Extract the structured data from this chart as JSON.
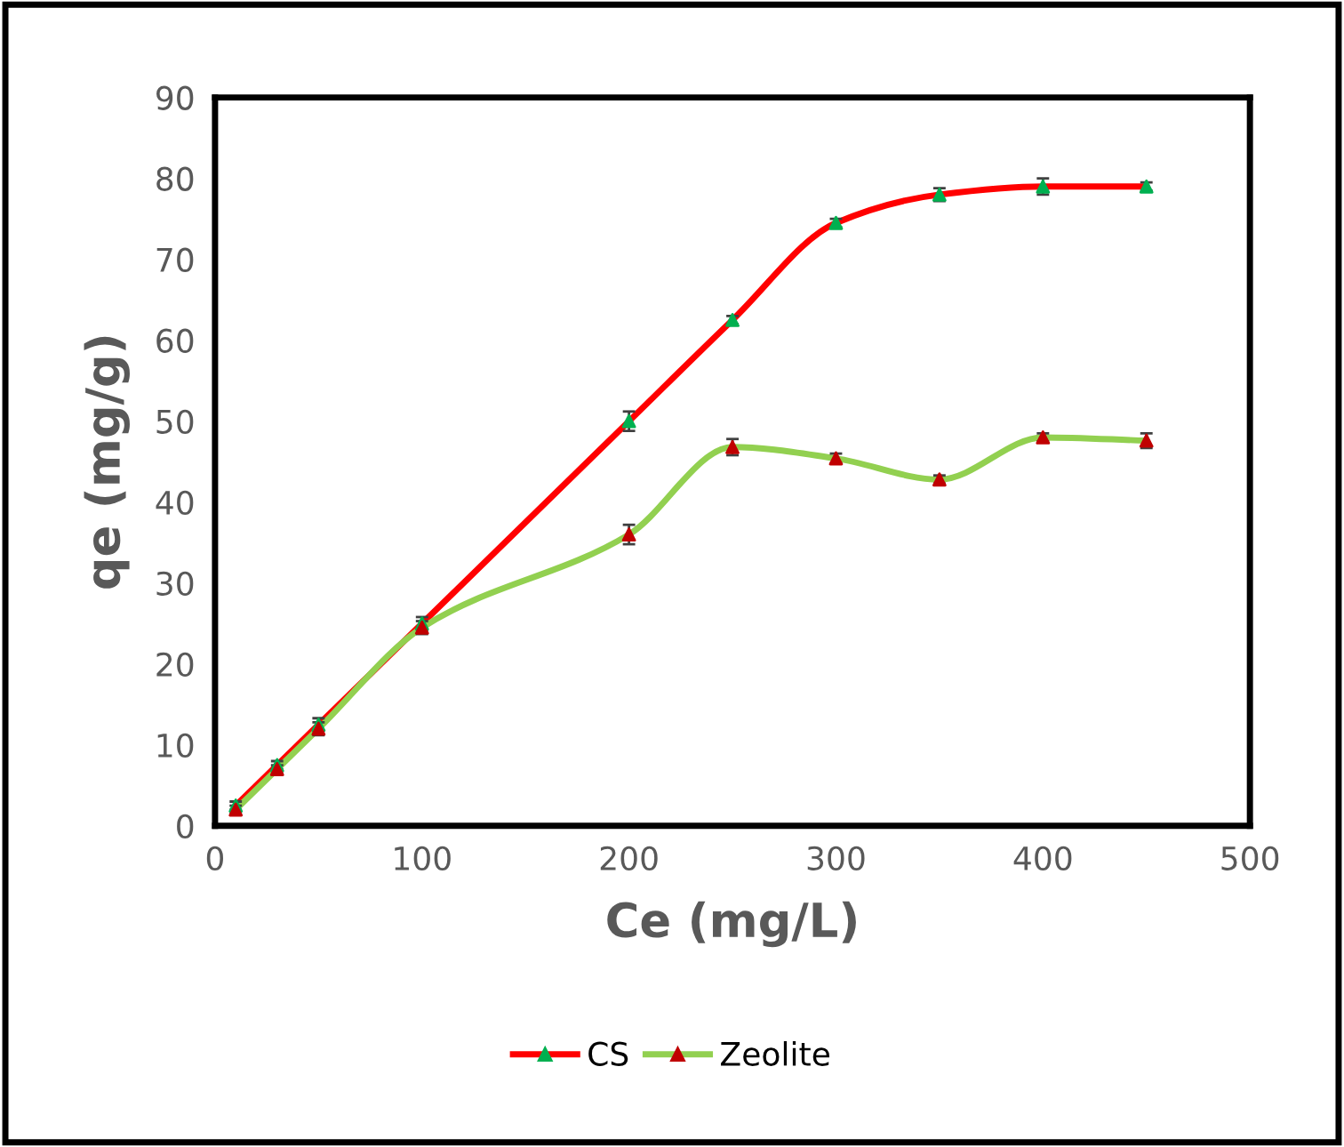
{
  "chart_data": {
    "type": "line",
    "xlabel": "Ce (mg/L)",
    "ylabel": "qe (mg/g)",
    "xlim": [
      0,
      500
    ],
    "xticks": [
      0,
      100,
      200,
      300,
      400,
      500
    ],
    "ylim": [
      0,
      90
    ],
    "yticks": [
      0,
      10,
      20,
      30,
      40,
      50,
      60,
      70,
      80,
      90
    ],
    "grid": false,
    "legend": "bottom",
    "marker": "triangle",
    "line_style": "solid",
    "series": [
      {
        "name": "CS",
        "color": "#ff0000",
        "colors": [
          "#00b050",
          "#00b050",
          "#00b050",
          "#00b050",
          "#00b050",
          "#00b050",
          "#00b050",
          "#00b050",
          "#00b050",
          "#00b050"
        ],
        "x": [
          10,
          30,
          50,
          100,
          200,
          250,
          300,
          350,
          400,
          450
        ],
        "values": [
          2.5,
          7.5,
          12.5,
          25,
          50,
          62.5,
          74.5,
          78,
          79,
          79
        ],
        "errors": [
          0.5,
          0.5,
          0.8,
          0.8,
          1.2,
          0.5,
          0.5,
          0.8,
          1,
          0.5
        ]
      },
      {
        "name": "Zeolite",
        "color": "#92d050",
        "colors": [
          "#c00000",
          "#c00000",
          "#c00000",
          "#c00000",
          "#c00000",
          "#c00000",
          "#c00000",
          "#c00000",
          "#c00000",
          "#c00000"
        ],
        "x": [
          10,
          30,
          50,
          100,
          200,
          250,
          300,
          350,
          400,
          450
        ],
        "values": [
          2,
          7,
          12,
          24.5,
          36,
          46.8,
          45.4,
          42.8,
          48,
          47.6
        ],
        "errors": [
          0.5,
          0.5,
          0.8,
          0.8,
          1.2,
          1,
          0.6,
          0.5,
          0.5,
          0.9
        ]
      }
    ]
  }
}
